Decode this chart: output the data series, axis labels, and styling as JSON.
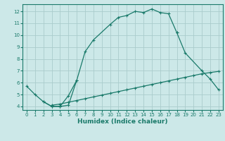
{
  "xlabel": "Humidex (Indice chaleur)",
  "bg_color": "#cce8e8",
  "grid_color": "#aacccc",
  "line_color": "#1a7a6a",
  "xlim": [
    -0.5,
    23.5
  ],
  "ylim": [
    3.7,
    12.6
  ],
  "xticks": [
    0,
    1,
    2,
    3,
    4,
    5,
    6,
    7,
    8,
    9,
    10,
    11,
    12,
    13,
    14,
    15,
    16,
    17,
    18,
    19,
    20,
    21,
    22,
    23
  ],
  "yticks": [
    4,
    5,
    6,
    7,
    8,
    9,
    10,
    11,
    12
  ],
  "line1_x": [
    0,
    1,
    2,
    3,
    4,
    5,
    6,
    7,
    8,
    10,
    11,
    12,
    13,
    14,
    15,
    16,
    17,
    18
  ],
  "line1_y": [
    5.7,
    5.0,
    4.4,
    4.0,
    4.0,
    4.1,
    6.2,
    8.6,
    9.6,
    10.9,
    11.5,
    11.65,
    12.0,
    11.9,
    12.2,
    11.9,
    11.8,
    10.2
  ],
  "line2_seg1_x": [
    2,
    3,
    4,
    5,
    6
  ],
  "line2_seg1_y": [
    4.4,
    4.0,
    4.0,
    4.9,
    6.2
  ],
  "line2_seg2_x": [
    18,
    19,
    21,
    22,
    23
  ],
  "line2_seg2_y": [
    10.2,
    8.5,
    7.0,
    6.3,
    5.4
  ],
  "line3_x": [
    3,
    4,
    5,
    6,
    7,
    8,
    9,
    10,
    11,
    12,
    13,
    14,
    15,
    16,
    17,
    18,
    19,
    20,
    21,
    22,
    23
  ],
  "line3_y": [
    4.1,
    4.2,
    4.35,
    4.5,
    4.65,
    4.8,
    4.95,
    5.1,
    5.25,
    5.4,
    5.55,
    5.7,
    5.85,
    6.0,
    6.15,
    6.3,
    6.45,
    6.6,
    6.75,
    6.85,
    6.95
  ]
}
